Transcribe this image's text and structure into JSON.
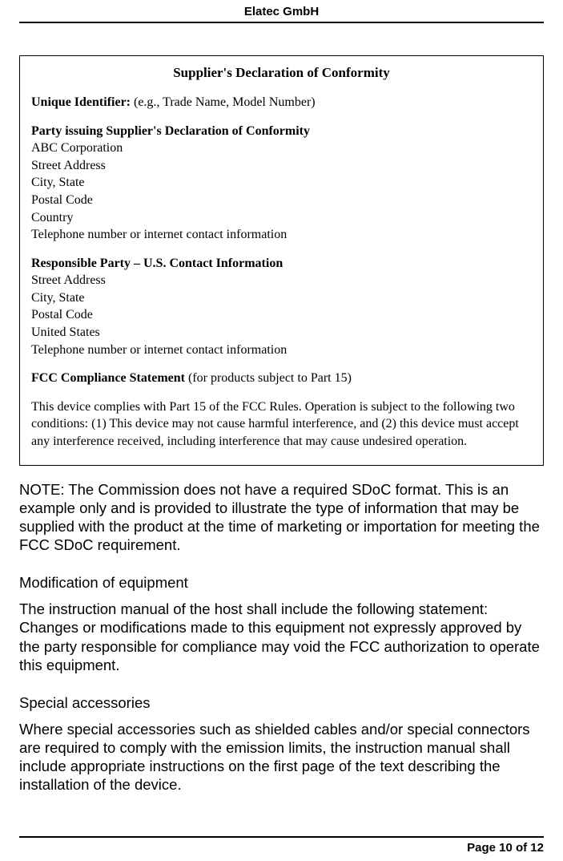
{
  "header": {
    "company": "Elatec GmbH"
  },
  "sdoc": {
    "title": "Supplier's Declaration of Conformity",
    "unique_label": "Unique Identifier:",
    "unique_hint": "(e.g., Trade Name, Model Number)",
    "party_heading": "Party issuing Supplier's Declaration of Conformity",
    "party_lines": [
      "ABC Corporation",
      "Street Address",
      "City, State",
      "Postal Code",
      "Country",
      "Telephone number or internet contact information"
    ],
    "responsible_heading": "Responsible Party – U.S. Contact Information",
    "responsible_lines": [
      "Street Address",
      "City, State",
      "Postal Code",
      "United States",
      "Telephone number or internet contact information"
    ],
    "fcc_label": "FCC Compliance Statement",
    "fcc_hint": "(for products subject to Part 15)",
    "fcc_statement": "This device complies with Part 15 of the FCC Rules.  Operation is subject to the following two conditions: (1) This device may not cause harmful interference, and (2) this device must accept any interference received, including interference that may cause undesired operation."
  },
  "note": "NOTE: The Commission does not have a required SDoC format. This is an example only and is provided to illustrate the type of information that may be supplied with the product at the time of marketing or importation for meeting the FCC SDoC requirement.",
  "sections": {
    "mod_heading": "Modification of equipment",
    "mod_body": "The instruction manual of the host shall include the following statement: Changes or modifications made to this equipment not expressly approved by the party responsible for compliance may void the FCC authorization to operate this equipment.",
    "acc_heading": "Special accessories",
    "acc_body": "Where special accessories such as shielded cables and/or special connectors are required to comply with the emission limits, the instruction manual shall include appropriate instructions on the first page of the text describing the installation of the device."
  },
  "footer": {
    "page": "Page 10 of 12"
  }
}
